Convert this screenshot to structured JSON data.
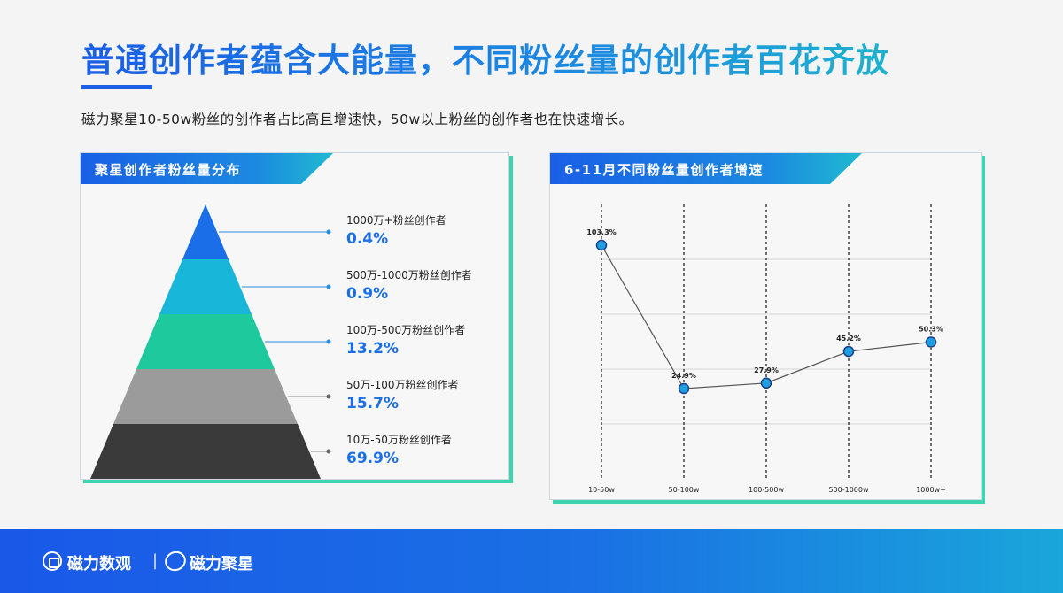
{
  "page": {
    "title": "普通创作者蕴含大能量，不同粉丝量的创作者百花齐放",
    "subtitle": "磁力聚星10-50w粉丝的创作者占比高且增速快，50w以上粉丝的创作者也在快速增长。"
  },
  "footer": {
    "brand1": "磁力数观",
    "separator": "|",
    "brand2": "磁力聚星"
  },
  "colors": {
    "blue": "#1a6ee8",
    "cyan": "#18b6d8",
    "teal": "#1ec99e",
    "gray": "#9b9b9b",
    "dark": "#3a3a3a",
    "accent": "#3fd3b0"
  },
  "chart_data": [
    {
      "type": "pyramid",
      "title": "聚星创作者粉丝量分布",
      "categories": [
        "1000万+粉丝创作者",
        "500万-1000万粉丝创作者",
        "100万-500万粉丝创作者",
        "50万-100万粉丝创作者",
        "10万-50万粉丝创作者"
      ],
      "values": [
        0.4,
        0.9,
        13.2,
        15.7,
        69.9
      ],
      "value_labels": [
        "0.4%",
        "0.9%",
        "13.2%",
        "15.7%",
        "69.9%"
      ],
      "unit": "%"
    },
    {
      "type": "line",
      "title": "6-11月不同粉丝量创作者增速",
      "categories": [
        "10-50w",
        "50-100w",
        "100-500w",
        "500-1000w",
        "1000w+"
      ],
      "values": [
        103.3,
        24.9,
        27.9,
        45.2,
        50.3
      ],
      "value_labels": [
        "103.3%",
        "24.9%",
        "27.9%",
        "45.2%",
        "50.3%"
      ],
      "grid": true,
      "legend": "none"
    }
  ]
}
